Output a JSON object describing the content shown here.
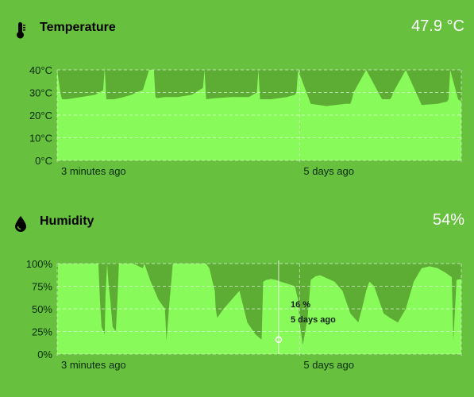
{
  "temperature": {
    "title": "Temperature",
    "value": "47.9 °C",
    "icon": "thermometer-icon",
    "chart_data": {
      "type": "area",
      "yticks": [
        "40°C",
        "30°C",
        "20°C",
        "10°C",
        "0°C"
      ],
      "ylim": [
        0,
        40
      ],
      "xticks": [
        "3 minutes ago",
        "5 days ago"
      ],
      "grid": true,
      "x": [
        0,
        0.2,
        0.3,
        0.6,
        1.5,
        2.4,
        2.9,
        3.0,
        3.1,
        3.6,
        4.2,
        4.7,
        5.0,
        5.4,
        5.8,
        6.1,
        6.2,
        6.3,
        6.8,
        7.6,
        8.5,
        9.2,
        9.3,
        9.4,
        10.0,
        11.0,
        12.1,
        12.6,
        12.7,
        12.8,
        13.5,
        14.5,
        15.0,
        15.1,
        15.2,
        16.0,
        17.0,
        18.2,
        18.5,
        18.6,
        18.7,
        19.5,
        20.5,
        21.0,
        21.1,
        21.2,
        22.0,
        23.0,
        24.0,
        24.6,
        24.7,
        24.8,
        25.3,
        25.5
      ],
      "values": [
        40,
        30,
        27,
        27,
        28,
        29,
        31,
        41,
        27,
        27,
        28,
        29,
        30,
        31,
        40,
        40,
        28,
        27.5,
        28,
        28,
        29,
        32,
        40,
        27,
        27.5,
        28,
        28,
        30,
        40,
        27,
        27,
        28,
        29,
        30,
        40,
        25,
        24,
        25,
        25,
        27,
        30,
        40,
        27,
        27,
        28,
        30,
        40,
        24.5,
        25,
        26,
        27,
        40,
        27,
        26
      ]
    }
  },
  "humidity": {
    "title": "Humidity",
    "value": "54%",
    "icon": "droplet-icon",
    "tooltip": {
      "value": "16 %",
      "time": "5 days ago"
    },
    "chart_data": {
      "type": "area",
      "yticks": [
        "100%",
        "75%",
        "50%",
        "25%",
        "0%"
      ],
      "ylim": [
        0,
        100
      ],
      "xticks": [
        "3 minutes ago",
        "5 days ago"
      ],
      "grid": true,
      "x": [
        0,
        0.05,
        0.15,
        0.25,
        0.3,
        1.0,
        2.0,
        2.6,
        2.7,
        2.8,
        3.0,
        3.05,
        3.15,
        3.25,
        3.35,
        3.5,
        3.7,
        3.8,
        3.9,
        4.0,
        4.15,
        4.2,
        4.8,
        5.4,
        5.5,
        5.9,
        6.4,
        6.8,
        6.9,
        7.1,
        7.3,
        8.2,
        8.5,
        9.0,
        9.4,
        9.6,
        9.7,
        9.8,
        9.95,
        10.0,
        10.1,
        10.5,
        11.0,
        11.5,
        12.0,
        12.5,
        12.9,
        13.0,
        13.2,
        13.5,
        13.8,
        14.1,
        14.5,
        15.0,
        15.2,
        15.3,
        15.5,
        15.8,
        16.0,
        16.3,
        16.6,
        17.0,
        17.5,
        18.0,
        18.5,
        19.0,
        19.3,
        19.5,
        19.7,
        20.0,
        20.3,
        20.6,
        21.0,
        21.5,
        22.0,
        22.5,
        23.0,
        23.5,
        24.0,
        24.5,
        24.9,
        25.0,
        25.2,
        25.5
      ],
      "values": [
        40,
        100,
        100,
        100,
        100,
        100,
        100,
        100,
        60,
        30,
        22,
        65,
        100,
        75,
        60,
        30,
        25,
        60,
        100,
        100,
        100,
        100,
        100,
        95,
        100,
        80,
        60,
        50,
        15,
        60,
        100,
        100,
        100,
        100,
        100,
        95,
        88,
        80,
        70,
        50,
        40,
        50,
        60,
        70,
        35,
        22,
        16,
        80,
        82,
        83,
        82,
        80,
        78,
        75,
        60,
        35,
        10,
        40,
        82,
        86,
        87,
        84,
        80,
        70,
        45,
        35,
        55,
        70,
        80,
        75,
        60,
        45,
        40,
        35,
        50,
        80,
        95,
        97,
        95,
        90,
        85,
        15,
        82,
        83
      ]
    }
  }
}
